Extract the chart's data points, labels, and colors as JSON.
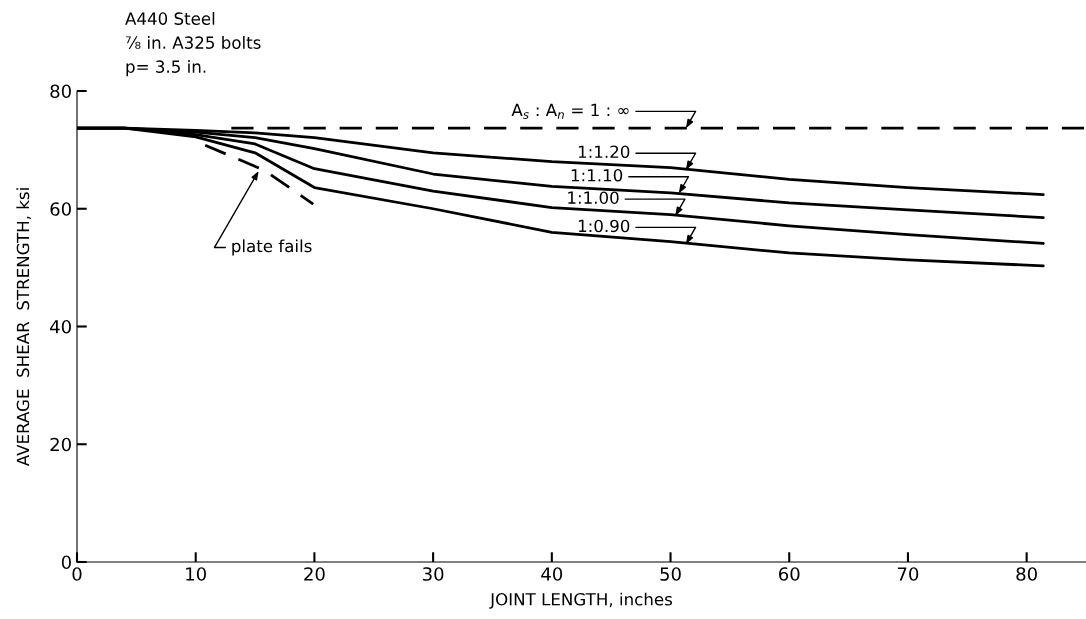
{
  "chart_data": {
    "type": "line",
    "xlabel": "JOINT LENGTH, inches",
    "ylabel": "AVERAGE  SHEAR  STRENGTH, ksi",
    "xlim": [
      0,
      85
    ],
    "ylim": [
      0,
      80
    ],
    "xticks": [
      0,
      10,
      20,
      30,
      40,
      50,
      60,
      70,
      80
    ],
    "yticks": [
      0,
      20,
      40,
      60,
      80
    ],
    "grid": false,
    "legend": false,
    "marker": "none",
    "series": [
      {
        "color": "#000000",
        "line_style": "dashed",
        "x": [
          13,
          85
        ],
        "values": [
          73.7,
          73.7
        ]
      },
      {
        "color": "#000000",
        "line_style": "solid",
        "x": [
          0,
          4,
          10,
          15,
          20,
          30,
          40,
          50,
          60,
          70,
          81.4
        ],
        "values": [
          73.7,
          73.7,
          73.3,
          72.9,
          72.1,
          69.5,
          68,
          67,
          65,
          63.6,
          62.4
        ]
      },
      {
        "color": "#000000",
        "line_style": "solid",
        "x": [
          0,
          4,
          10,
          15,
          20,
          30,
          40,
          50,
          60,
          70,
          81.4
        ],
        "values": [
          73.7,
          73.7,
          73,
          72.1,
          70.2,
          65.9,
          63.8,
          62.7,
          61,
          59.8,
          58.5
        ]
      },
      {
        "color": "#000000",
        "line_style": "solid",
        "x": [
          0,
          4,
          10,
          15,
          20,
          30,
          40,
          50,
          60,
          70,
          81.4
        ],
        "values": [
          73.7,
          73.7,
          72.6,
          71,
          66.8,
          63,
          60.2,
          59,
          57.1,
          55.6,
          54.1
        ]
      },
      {
        "color": "#000000",
        "line_style": "solid",
        "x": [
          0,
          4,
          10,
          15,
          20,
          30,
          40,
          50,
          60,
          70,
          81.4
        ],
        "values": [
          73.7,
          73.7,
          72.2,
          69.5,
          63.6,
          60,
          56,
          54.4,
          52.5,
          51.3,
          50.3
        ]
      },
      {
        "color": "#000000",
        "line_style": "dashed",
        "x": [
          10.8,
          15.8,
          19.9
        ],
        "values": [
          70.8,
          66.5,
          60.8
        ]
      }
    ],
    "annotations": [
      "A440 Steel",
      "⅞ in. A325 bolts",
      "p= 3.5 in.",
      {
        "text": "A$_{s}$ : A$_{n}$ = 1 : ∞",
        "x": 51.3,
        "y": 73.7
      },
      {
        "text": "1:1.20",
        "x": 51.3,
        "y": 66.6
      },
      {
        "text": "1:1.10",
        "x": 50.7,
        "y": 62.6
      },
      {
        "text": "1:1.00",
        "x": 50.4,
        "y": 58.8
      },
      {
        "text": "1:0.90",
        "x": 51.3,
        "y": 54
      },
      {
        "text": "plate fails",
        "x": 15.3,
        "y": 66.4
      }
    ]
  }
}
